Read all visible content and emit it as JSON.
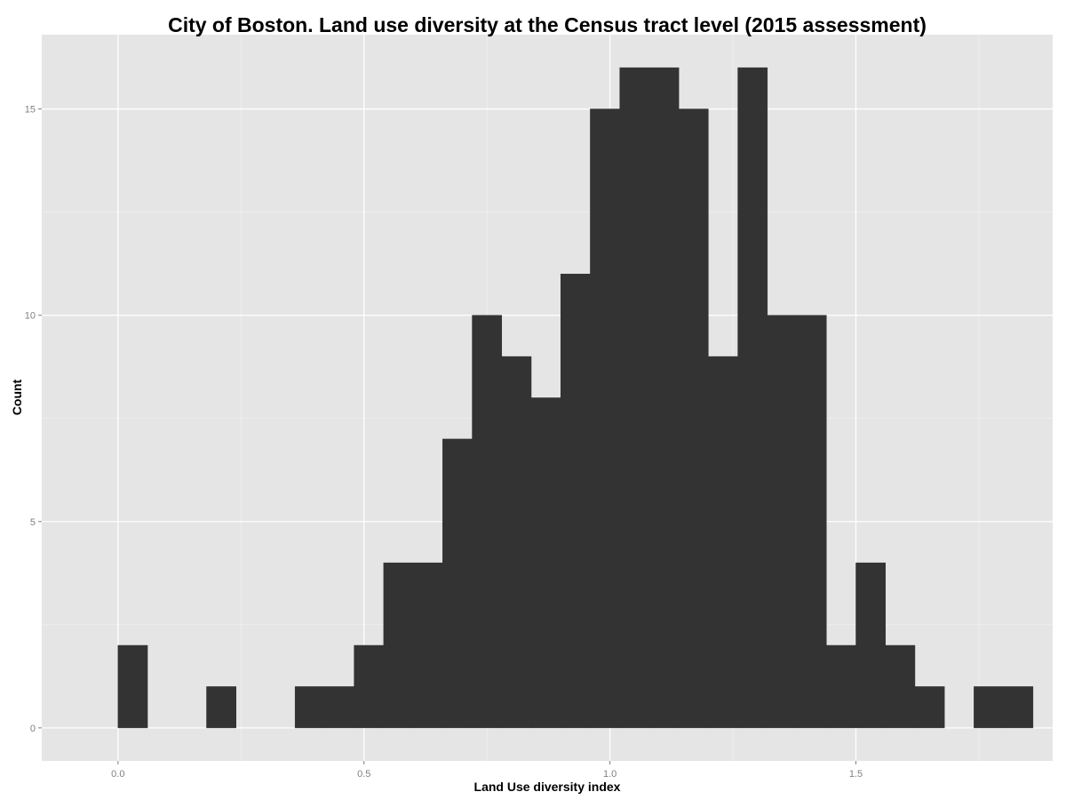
{
  "chart_data": {
    "type": "bar",
    "title": "City of Boston. Land use diversity at the Census tract level (2015 assessment)",
    "xlabel": "Land Use diversity index",
    "ylabel": "Count",
    "xlim": [
      -0.155,
      1.9
    ],
    "ylim": [
      -0.8,
      16.8
    ],
    "x_ticks": [
      {
        "value": 0.0,
        "label": "0.0"
      },
      {
        "value": 0.5,
        "label": "0.5"
      },
      {
        "value": 1.0,
        "label": "1.0"
      },
      {
        "value": 1.5,
        "label": "1.5"
      }
    ],
    "y_ticks": [
      {
        "value": 0,
        "label": "0"
      },
      {
        "value": 5,
        "label": "5"
      },
      {
        "value": 10,
        "label": "10"
      },
      {
        "value": 15,
        "label": "15"
      }
    ],
    "x_minor_gridlines": [
      0.25,
      0.75,
      1.25,
      1.75
    ],
    "y_minor_gridlines": [
      2.5,
      7.5,
      12.5
    ],
    "grid": true,
    "legend": "none",
    "bin_width": 0.06,
    "bins": [
      {
        "x_start": 0.0,
        "x_end": 0.06,
        "count": 2
      },
      {
        "x_start": 0.18,
        "x_end": 0.24,
        "count": 1
      },
      {
        "x_start": 0.36,
        "x_end": 0.42,
        "count": 1
      },
      {
        "x_start": 0.42,
        "x_end": 0.48,
        "count": 1
      },
      {
        "x_start": 0.48,
        "x_end": 0.54,
        "count": 2
      },
      {
        "x_start": 0.54,
        "x_end": 0.6,
        "count": 4
      },
      {
        "x_start": 0.6,
        "x_end": 0.66,
        "count": 4
      },
      {
        "x_start": 0.66,
        "x_end": 0.72,
        "count": 7
      },
      {
        "x_start": 0.72,
        "x_end": 0.78,
        "count": 10
      },
      {
        "x_start": 0.78,
        "x_end": 0.84,
        "count": 9
      },
      {
        "x_start": 0.84,
        "x_end": 0.9,
        "count": 8
      },
      {
        "x_start": 0.9,
        "x_end": 0.96,
        "count": 11
      },
      {
        "x_start": 0.96,
        "x_end": 1.02,
        "count": 15
      },
      {
        "x_start": 1.02,
        "x_end": 1.08,
        "count": 16
      },
      {
        "x_start": 1.08,
        "x_end": 1.14,
        "count": 16
      },
      {
        "x_start": 1.14,
        "x_end": 1.2,
        "count": 15
      },
      {
        "x_start": 1.2,
        "x_end": 1.26,
        "count": 9
      },
      {
        "x_start": 1.26,
        "x_end": 1.32,
        "count": 16
      },
      {
        "x_start": 1.32,
        "x_end": 1.38,
        "count": 10
      },
      {
        "x_start": 1.38,
        "x_end": 1.44,
        "count": 10
      },
      {
        "x_start": 1.44,
        "x_end": 1.5,
        "count": 2
      },
      {
        "x_start": 1.5,
        "x_end": 1.56,
        "count": 4
      },
      {
        "x_start": 1.56,
        "x_end": 1.62,
        "count": 2
      },
      {
        "x_start": 1.62,
        "x_end": 1.68,
        "count": 1
      },
      {
        "x_start": 1.74,
        "x_end": 1.8,
        "count": 1
      },
      {
        "x_start": 1.8,
        "x_end": 1.86,
        "count": 1
      }
    ],
    "colors": {
      "panel_background": "#e5e5e5",
      "major_grid": "#ffffff",
      "minor_grid": "#f2f2f2",
      "bar_fill": "#333333",
      "tick_label": "#808080",
      "tick_mark": "#808080",
      "text": "#000000"
    }
  }
}
